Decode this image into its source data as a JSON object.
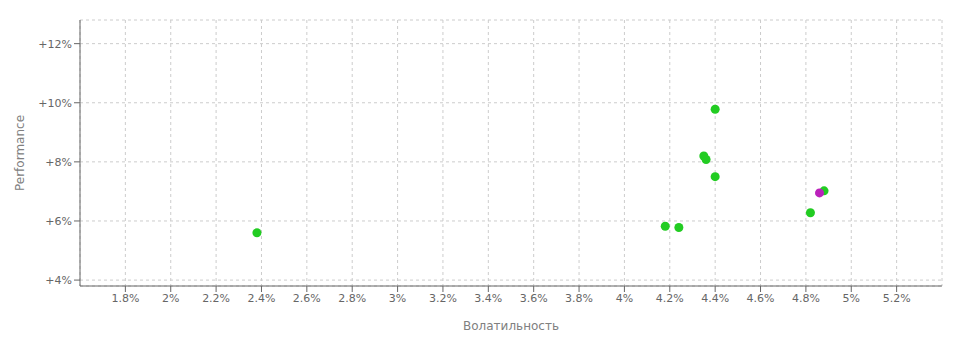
{
  "chart_data": {
    "type": "scatter",
    "xlabel": "Волатильность",
    "ylabel": "Performance",
    "xlim": [
      0.016,
      0.054
    ],
    "ylim": [
      0.038,
      0.128
    ],
    "xticks": [
      {
        "value": 0.018,
        "label": "1.8%"
      },
      {
        "value": 0.02,
        "label": "2%"
      },
      {
        "value": 0.022,
        "label": "2.2%"
      },
      {
        "value": 0.024,
        "label": "2.4%"
      },
      {
        "value": 0.026,
        "label": "2.6%"
      },
      {
        "value": 0.028,
        "label": "2.8%"
      },
      {
        "value": 0.03,
        "label": "3%"
      },
      {
        "value": 0.032,
        "label": "3.2%"
      },
      {
        "value": 0.034,
        "label": "3.4%"
      },
      {
        "value": 0.036,
        "label": "3.6%"
      },
      {
        "value": 0.038,
        "label": "3.8%"
      },
      {
        "value": 0.04,
        "label": "4%"
      },
      {
        "value": 0.042,
        "label": "4.2%"
      },
      {
        "value": 0.044,
        "label": "4.4%"
      },
      {
        "value": 0.046,
        "label": "4.6%"
      },
      {
        "value": 0.048,
        "label": "4.8%"
      },
      {
        "value": 0.05,
        "label": "5%"
      },
      {
        "value": 0.052,
        "label": "5.2%"
      }
    ],
    "yticks": [
      {
        "value": 0.04,
        "label": "+4%"
      },
      {
        "value": 0.06,
        "label": "+6%"
      },
      {
        "value": 0.08,
        "label": "+8%"
      },
      {
        "value": 0.1,
        "label": "+10%"
      },
      {
        "value": 0.12,
        "label": "+12%"
      }
    ],
    "grid": true,
    "series": [
      {
        "color": "#22cc22",
        "x": [
          0.0238,
          0.0418,
          0.0424,
          0.0435,
          0.0436,
          0.044,
          0.044,
          0.0482,
          0.0488
        ],
        "values": [
          0.056,
          0.0582,
          0.0578,
          0.082,
          0.0808,
          0.075,
          0.0978,
          0.0628,
          0.0702
        ]
      },
      {
        "color": "#bb22bb",
        "x": [
          0.0486
        ],
        "values": [
          0.0695
        ]
      }
    ]
  }
}
